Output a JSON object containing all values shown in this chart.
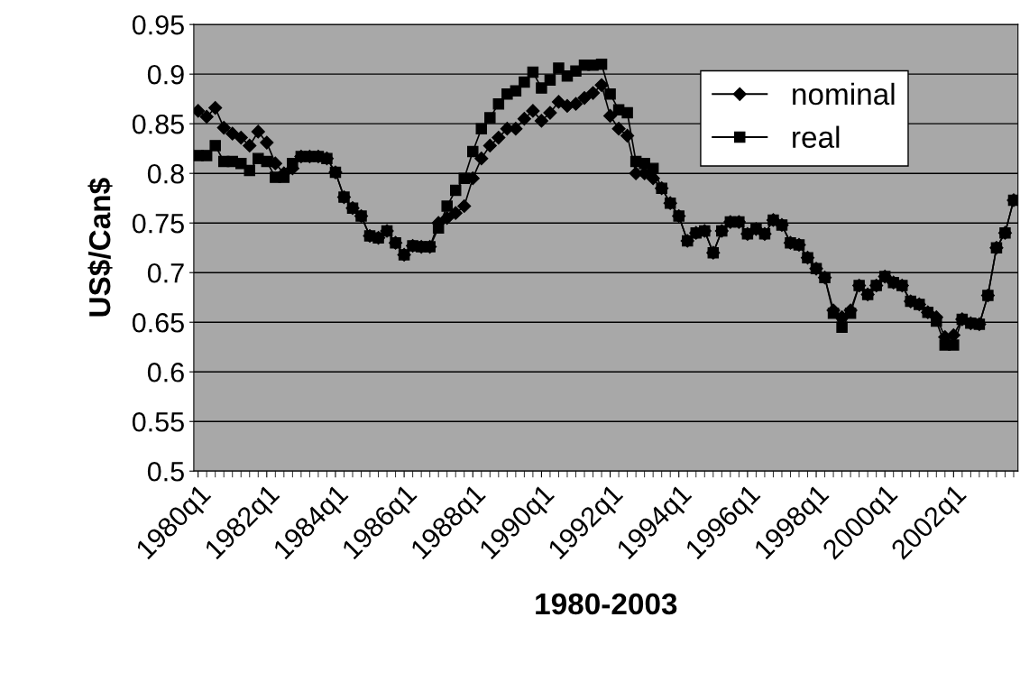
{
  "chart_data": {
    "type": "line",
    "xlabel": "1980-2003",
    "ylabel": "US$/Can$",
    "categories": [
      "1980q1",
      null,
      null,
      null,
      null,
      null,
      null,
      null,
      "1982q1",
      null,
      null,
      null,
      null,
      null,
      null,
      null,
      "1984q1",
      null,
      null,
      null,
      null,
      null,
      null,
      null,
      "1986q1",
      null,
      null,
      null,
      null,
      null,
      null,
      null,
      "1988q1",
      null,
      null,
      null,
      null,
      null,
      null,
      null,
      "1990q1",
      null,
      null,
      null,
      null,
      null,
      null,
      null,
      "1992q1",
      null,
      null,
      null,
      null,
      null,
      null,
      null,
      "1994q1",
      null,
      null,
      null,
      null,
      null,
      null,
      null,
      "1996q1",
      null,
      null,
      null,
      null,
      null,
      null,
      null,
      "1998q1",
      null,
      null,
      null,
      null,
      null,
      null,
      null,
      "2000q1",
      null,
      null,
      null,
      null,
      null,
      null,
      null,
      "2002q1",
      null,
      null,
      null,
      null,
      null,
      null,
      null
    ],
    "series": [
      {
        "name": "nominal",
        "color": "#000000",
        "marker": "diamond",
        "values": [
          0.863,
          0.857,
          0.866,
          0.846,
          0.84,
          0.836,
          0.828,
          0.842,
          0.831,
          0.81,
          0.8,
          0.805,
          0.817,
          0.817,
          0.817,
          0.815,
          0.801,
          0.776,
          0.765,
          0.757,
          0.737,
          0.735,
          0.742,
          0.73,
          0.718,
          0.727,
          0.726,
          0.726,
          0.75,
          0.755,
          0.76,
          0.767,
          0.795,
          0.815,
          0.828,
          0.836,
          0.845,
          0.845,
          0.855,
          0.863,
          0.853,
          0.861,
          0.872,
          0.868,
          0.87,
          0.876,
          0.881,
          0.889,
          0.858,
          0.845,
          0.838,
          0.8,
          0.8,
          0.795,
          0.785,
          0.77,
          0.757,
          0.732,
          0.74,
          0.742,
          0.72,
          0.742,
          0.751,
          0.751,
          0.739,
          0.744,
          0.739,
          0.753,
          0.748,
          0.73,
          0.728,
          0.715,
          0.704,
          0.695,
          0.662,
          0.655,
          0.662,
          0.687,
          0.678,
          0.687,
          0.696,
          0.69,
          0.687,
          0.671,
          0.668,
          0.66,
          0.655,
          0.635,
          0.637,
          0.653,
          0.649,
          0.648,
          0.677,
          0.725,
          0.74,
          0.773
        ]
      },
      {
        "name": "real",
        "color": "#000000",
        "marker": "square",
        "values": [
          0.818,
          0.818,
          0.828,
          0.812,
          0.812,
          0.81,
          0.803,
          0.815,
          0.812,
          0.796,
          0.796,
          0.81,
          0.817,
          0.817,
          0.817,
          0.815,
          0.801,
          0.776,
          0.765,
          0.757,
          0.737,
          0.735,
          0.742,
          0.73,
          0.718,
          0.727,
          0.726,
          0.726,
          0.745,
          0.767,
          0.783,
          0.795,
          0.822,
          0.845,
          0.856,
          0.87,
          0.88,
          0.883,
          0.892,
          0.902,
          0.886,
          0.894,
          0.906,
          0.898,
          0.903,
          0.909,
          0.909,
          0.91,
          0.88,
          0.864,
          0.861,
          0.812,
          0.81,
          0.805,
          0.785,
          0.77,
          0.757,
          0.732,
          0.74,
          0.742,
          0.72,
          0.742,
          0.751,
          0.751,
          0.739,
          0.744,
          0.739,
          0.753,
          0.748,
          0.73,
          0.728,
          0.715,
          0.704,
          0.695,
          0.659,
          0.645,
          0.659,
          0.687,
          0.678,
          0.687,
          0.696,
          0.69,
          0.687,
          0.671,
          0.668,
          0.66,
          0.651,
          0.627,
          0.627,
          0.653,
          0.649,
          0.648,
          0.677,
          0.725,
          0.74,
          0.773
        ]
      }
    ],
    "ylim": [
      0.5,
      0.95
    ],
    "yticks": [
      0.5,
      0.55,
      0.6,
      0.65,
      0.7,
      0.75,
      0.8,
      0.85,
      0.9,
      0.95
    ],
    "grid": "y",
    "legend": "top right",
    "line_style": "solid"
  }
}
